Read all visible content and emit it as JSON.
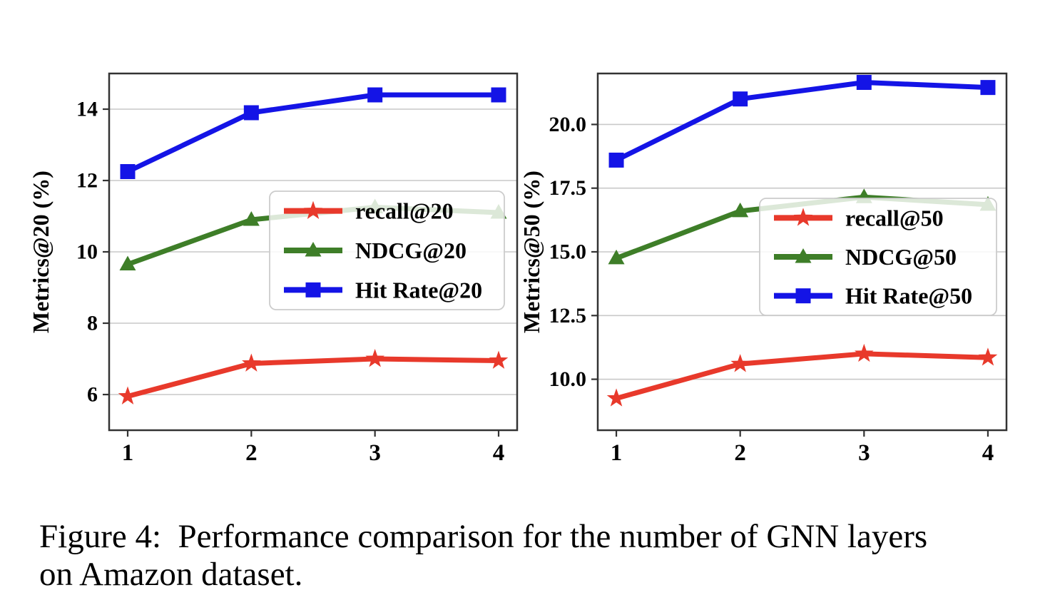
{
  "figure": {
    "caption_line1": "Figure 4:  Performance comparison for the number of GNN layers",
    "caption_line2": "on Amazon dataset."
  },
  "style_colors": {
    "recall_red": "#e8392b",
    "ndcg_green": "#3e7e28",
    "hit_rate_blue": "#1414e6",
    "gridline_gray": "#c9c9c9",
    "spine_dark": "#333333",
    "legend_border": "#cccccc",
    "legend_fill": "#ffffff"
  },
  "chart_data": [
    {
      "type": "line",
      "title": "",
      "xlabel": "",
      "ylabel": "Metrics@20 (%)",
      "x": [
        1,
        2,
        3,
        4
      ],
      "xtick_labels": [
        "1",
        "2",
        "3",
        "4"
      ],
      "yticks": [
        6,
        8,
        10,
        12,
        14
      ],
      "ytick_labels": [
        "6",
        "8",
        "10",
        "12",
        "14"
      ],
      "xlim": [
        0.85,
        4.15
      ],
      "ylim": [
        5.0,
        15.0
      ],
      "grid": "horizontal",
      "legend_position": "inside-center-right",
      "series": [
        {
          "name": "recall@20",
          "marker": "star",
          "color": "#e8392b",
          "values": [
            5.95,
            6.87,
            7.0,
            6.95
          ]
        },
        {
          "name": "NDCG@20",
          "marker": "triangle",
          "color": "#3e7e28",
          "values": [
            9.65,
            10.9,
            11.25,
            11.1
          ]
        },
        {
          "name": "Hit Rate@20",
          "marker": "square",
          "color": "#1414e6",
          "values": [
            12.25,
            13.9,
            14.4,
            14.4
          ]
        }
      ]
    },
    {
      "type": "line",
      "title": "",
      "xlabel": "",
      "ylabel": "Metrics@50 (%)",
      "x": [
        1,
        2,
        3,
        4
      ],
      "xtick_labels": [
        "1",
        "2",
        "3",
        "4"
      ],
      "yticks": [
        10.0,
        12.5,
        15.0,
        17.5,
        20.0
      ],
      "ytick_labels": [
        "10.0",
        "12.5",
        "15.0",
        "17.5",
        "20.0"
      ],
      "xlim": [
        0.85,
        4.15
      ],
      "ylim": [
        8.0,
        22.0
      ],
      "grid": "horizontal",
      "legend_position": "inside-center-right",
      "series": [
        {
          "name": "recall@50",
          "marker": "star",
          "color": "#e8392b",
          "values": [
            9.25,
            10.6,
            11.0,
            10.85
          ]
        },
        {
          "name": "NDCG@50",
          "marker": "triangle",
          "color": "#3e7e28",
          "values": [
            14.75,
            16.6,
            17.15,
            16.85
          ]
        },
        {
          "name": "Hit Rate@50",
          "marker": "square",
          "color": "#1414e6",
          "values": [
            18.6,
            21.0,
            21.65,
            21.45
          ]
        }
      ]
    }
  ]
}
